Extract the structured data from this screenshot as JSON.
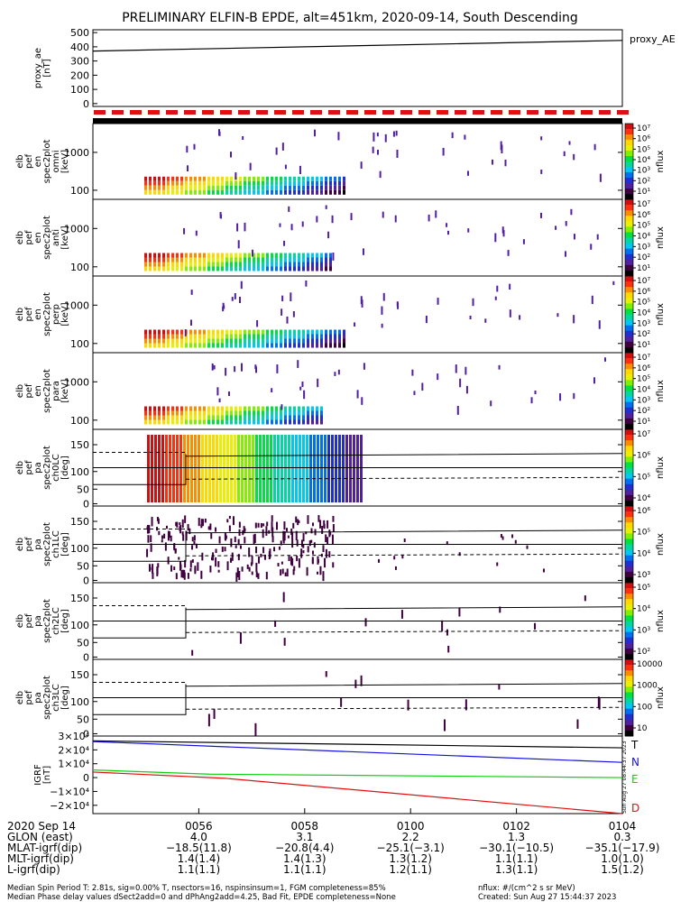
{
  "title": "PRELIMINARY ELFIN-B EPDE, alt=451km, 2020-09-14, South Descending",
  "colors": {
    "red": "#e01010",
    "blue": "#1010e0",
    "green": "#10d010",
    "black": "#000000"
  },
  "chart_data": [
    {
      "type": "line",
      "id": "proxy_ae",
      "legend": "proxy_AE",
      "ylabel": [
        "proxy_ae",
        "[nT]"
      ],
      "yticks": [
        0,
        100,
        200,
        300,
        400,
        500
      ],
      "ylim": [
        -20,
        520
      ],
      "series": [
        {
          "x": [
            0,
            1
          ],
          "y": [
            370,
            445
          ]
        }
      ]
    },
    {
      "type": "heatmap",
      "id": "omni",
      "ylabel": [
        "elb",
        "pef",
        "en",
        "spec2plot",
        "omni",
        "[keV]"
      ],
      "yticks": [
        "100",
        "1000"
      ],
      "cbar_ticks": [
        "10⁷",
        "10⁶",
        "10⁵",
        "10⁴",
        "10³",
        "10²",
        "10¹"
      ],
      "cbar_label": "nflux"
    },
    {
      "type": "heatmap",
      "id": "anti",
      "ylabel": [
        "elb",
        "pef",
        "en",
        "spec2plot",
        "anti",
        "[keV]"
      ],
      "yticks": [
        "100",
        "1000"
      ],
      "cbar_ticks": [
        "10⁷",
        "10⁶",
        "10⁵",
        "10⁴",
        "10³",
        "10²",
        "10¹"
      ],
      "cbar_label": "nflux"
    },
    {
      "type": "heatmap",
      "id": "perp",
      "ylabel": [
        "elb",
        "pef",
        "en",
        "spec2plot",
        "perp",
        "[keV]"
      ],
      "yticks": [
        "100",
        "1000"
      ],
      "cbar_ticks": [
        "10⁷",
        "10⁶",
        "10⁵",
        "10⁴",
        "10³",
        "10²",
        "10¹"
      ],
      "cbar_label": "nflux"
    },
    {
      "type": "heatmap",
      "id": "para",
      "ylabel": [
        "elb",
        "pef",
        "en",
        "spec2plot",
        "para",
        "[keV]"
      ],
      "yticks": [
        "100",
        "1000"
      ],
      "cbar_ticks": [
        "10⁷",
        "10⁶",
        "10⁵",
        "10⁴",
        "10³",
        "10²",
        "10¹"
      ],
      "cbar_label": "nflux"
    },
    {
      "type": "heatmap",
      "id": "ch0LC",
      "ylabel": [
        "elb",
        "pef",
        "pa",
        "spec2plot",
        "ch0LC",
        "[deg]"
      ],
      "yticks": [
        "0",
        "50",
        "100",
        "150"
      ],
      "cbar_ticks": [
        "10⁷",
        "10⁶",
        "10⁵",
        "10⁴"
      ],
      "cbar_label": "nflux"
    },
    {
      "type": "heatmap",
      "id": "ch1LC",
      "ylabel": [
        "elb",
        "pef",
        "pa",
        "spec2plot",
        "ch1LC",
        "[deg]"
      ],
      "yticks": [
        "0",
        "50",
        "100",
        "150"
      ],
      "cbar_ticks": [
        "10⁶",
        "10⁵",
        "10⁴",
        "10³"
      ],
      "cbar_label": "nflux"
    },
    {
      "type": "heatmap",
      "id": "ch2LC",
      "ylabel": [
        "elb",
        "pef",
        "pa",
        "spec2plot",
        "ch2LC",
        "[deg]"
      ],
      "yticks": [
        "0",
        "50",
        "100",
        "150"
      ],
      "cbar_ticks": [
        "10⁵",
        "10⁴",
        "10³",
        "10²"
      ],
      "cbar_label": "nflux"
    },
    {
      "type": "heatmap",
      "id": "ch3LC",
      "ylabel": [
        "elb",
        "pef",
        "pa",
        "spec2plot",
        "ch3LC",
        "[deg]"
      ],
      "yticks": [
        "0",
        "50",
        "100",
        "150"
      ],
      "cbar_ticks": [
        "10000",
        "1000",
        "100",
        "10"
      ],
      "cbar_label": "nflux"
    },
    {
      "type": "line",
      "id": "igrf",
      "ylabel": [
        "IGRF",
        "[nT]"
      ],
      "yticks": [
        "−2×10⁴",
        "−1×10⁴",
        "0",
        "1×10⁴",
        "2×10⁴",
        "3×10⁴"
      ],
      "ylim": [
        -26000,
        30000
      ],
      "series": [
        {
          "name": "T",
          "color": "#000000",
          "x": [
            0,
            1
          ],
          "y": [
            26500,
            21500
          ]
        },
        {
          "name": "N",
          "color": "#1010e0",
          "x": [
            0,
            1
          ],
          "y": [
            26000,
            11000
          ]
        },
        {
          "name": "E",
          "color": "#10d010",
          "x": [
            0,
            0.22,
            1
          ],
          "y": [
            5500,
            2500,
            0
          ]
        },
        {
          "name": "D",
          "color": "#e01010",
          "x": [
            0,
            0.25,
            1
          ],
          "y": [
            4000,
            -500,
            -26000
          ]
        }
      ]
    }
  ],
  "xaxis": {
    "ticks": [
      "0056",
      "0058",
      "0100",
      "0102",
      "0104"
    ],
    "date_label": "2020 Sep 14",
    "rows": [
      {
        "label": "GLON (east)",
        "values": [
          "4.0",
          "3.1",
          "2.2",
          "1.3",
          "0.3"
        ]
      },
      {
        "label": "MLAT-igrf(dip)",
        "values": [
          "−18.5(11.8)",
          "−20.8(4.4)",
          "−25.1(−3.1)",
          "−30.1(−10.5)",
          "−35.1(−17.9)"
        ]
      },
      {
        "label": "MLT-igrf(dip)",
        "values": [
          "1.4(1.4)",
          "1.4(1.3)",
          "1.3(1.2)",
          "1.1(1.1)",
          "1.0(1.0)"
        ]
      },
      {
        "label": "L-igrf(dip)",
        "values": [
          "1.1(1.1)",
          "1.1(1.1)",
          "1.2(1.1)",
          "1.3(1.1)",
          "1.5(1.2)"
        ]
      }
    ]
  },
  "footer": {
    "left1": "Median Spin Period T: 2.81s, sig=0.00% T, nsectors=16, nspinsinsum=1, FGM completeness=85%",
    "left2": "Median Phase delay values dSect2add=0 and dPhAng2add=4.25, Bad Fit, EPDE completeness=None",
    "right1": "nflux: #/(cm^2 s sr MeV)",
    "right2": "Created: Sun Aug 27 15:44:37 2023",
    "vertical": "Sun Aug 27 08:44:37 2023"
  }
}
